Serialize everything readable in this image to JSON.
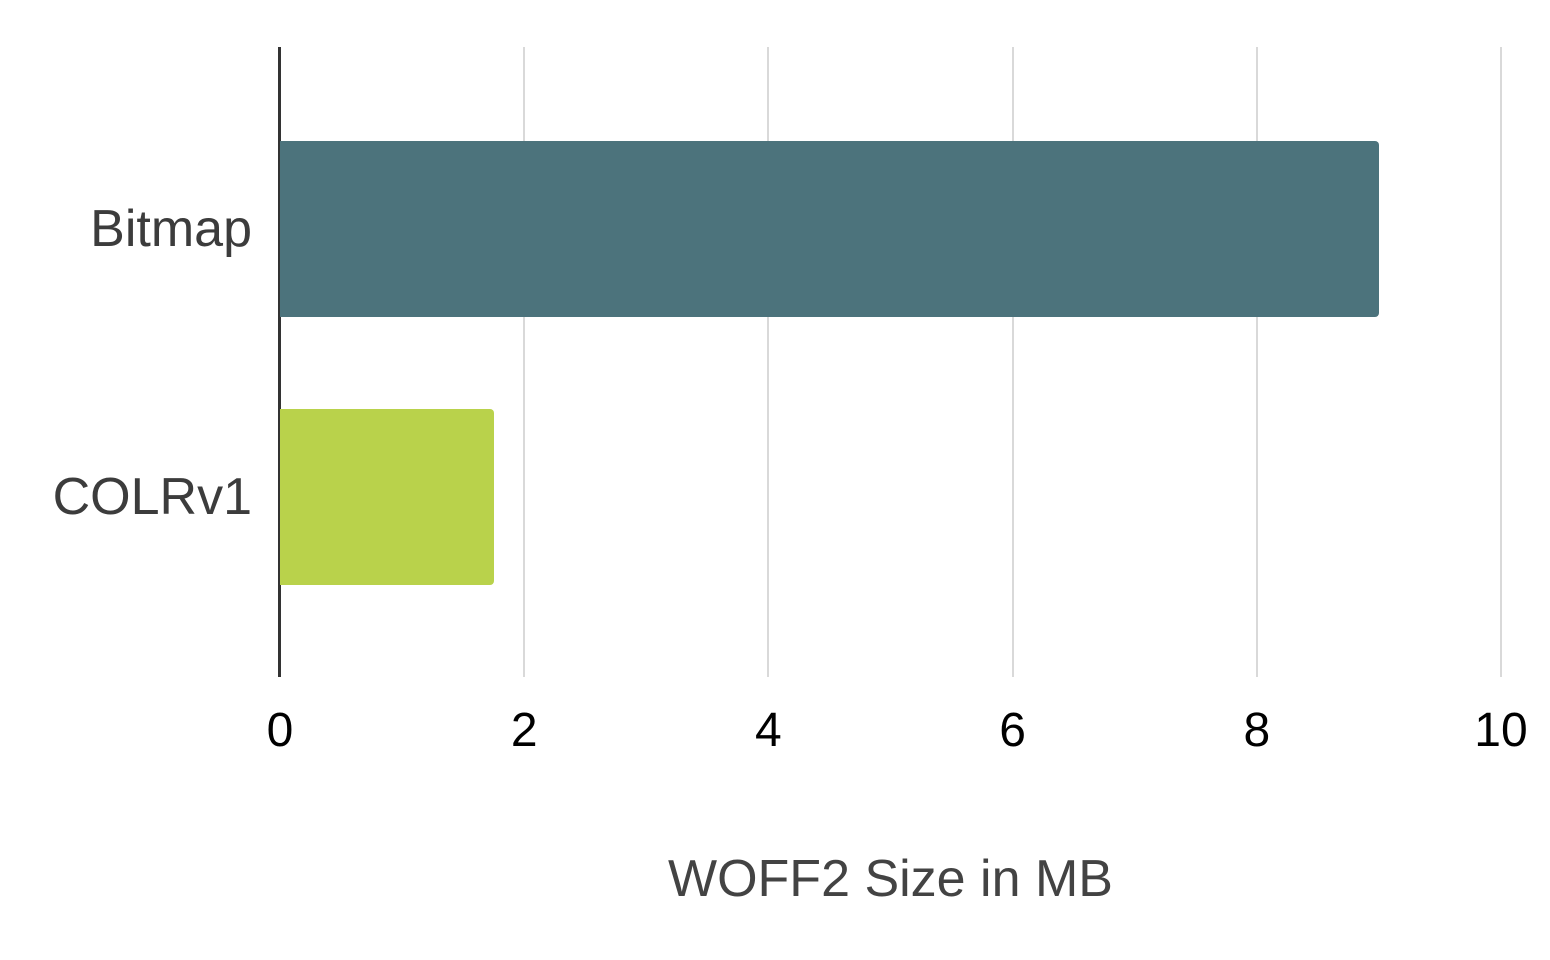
{
  "chart_data": {
    "type": "bar",
    "orientation": "horizontal",
    "title": "",
    "xlabel": "WOFF2 Size in MB",
    "ylabel": "",
    "categories": [
      "Bitmap",
      "COLRv1"
    ],
    "values": [
      9.0,
      1.75
    ],
    "xlim": [
      0,
      10
    ],
    "xticks": [
      0,
      2,
      4,
      6,
      8,
      10
    ],
    "grid": true,
    "legend_position": "none",
    "bar_colors": [
      "#4c737c",
      "#b9d24b"
    ],
    "gridline_color": "#d9d9d9",
    "axis_line_color": "#333333",
    "tick_label_color": "#000000",
    "category_label_color": "#3c3c3c",
    "axis_title_color": "#434343",
    "background_color": "#ffffff"
  }
}
